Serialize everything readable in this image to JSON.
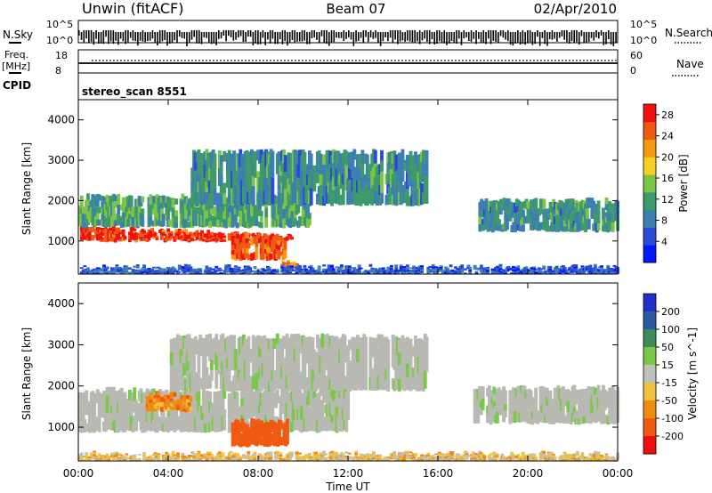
{
  "header": {
    "station": "Unwin (fitACF)",
    "beam": "Beam 07",
    "date": "02/Apr/2010"
  },
  "top_strips": {
    "nsky_label": "N.Sky",
    "nsky_ticks_left": [
      "10^5",
      "10^0"
    ],
    "nsearch_label": "N.Search",
    "nsearch_ticks_right": [
      "10^5",
      "10^0"
    ],
    "freq_label": "Freq.",
    "freq_unit": "[MHz]",
    "freq_ticks": [
      "18",
      "8"
    ],
    "nave_label": "Nave",
    "nave_ticks": [
      "60",
      "0"
    ],
    "cpid_label": "CPID",
    "cpid_value": "stereo_scan 8551"
  },
  "colors": {
    "power_scale": [
      "#0016ff",
      "#2a49d6",
      "#3d7fb0",
      "#3f9a6a",
      "#7bc445",
      "#f5d020",
      "#f59a12",
      "#ef5a12",
      "#f01010"
    ],
    "velocity_scale": [
      "#2030c8",
      "#2a5aa0",
      "#3d8a5a",
      "#7ac84a",
      "#c0c0ba",
      "#f0c040",
      "#f08a10",
      "#f05a10",
      "#ee1010"
    ],
    "ground_scatter": "#b9b9b3"
  },
  "chart_data": [
    {
      "type": "heatmap",
      "title": "",
      "xlabel": "",
      "ylabel": "Slant Range [km]",
      "x_ticks": [
        "00:00",
        "04:00",
        "08:00",
        "12:00",
        "16:00",
        "20:00",
        "00:00"
      ],
      "x_range_hours": [
        0,
        24
      ],
      "ylim": [
        180,
        4500
      ],
      "y_ticks": [
        1000,
        2000,
        3000,
        4000
      ],
      "colorbar": {
        "label": "Power [dB]",
        "ticks": [
          4,
          8,
          12,
          16,
          20,
          24,
          28
        ],
        "range": [
          0,
          30
        ]
      },
      "echo_regions": [
        {
          "name": "main band",
          "t_start": 0.0,
          "t_end": 9.5,
          "range_start_km": 1000,
          "range_end_km": 1350,
          "range_end_at_t_end_km": 1100,
          "power_db": 27
        },
        {
          "name": "upper band",
          "t_start": 0.0,
          "t_end": 10.5,
          "range_start_km": 1350,
          "range_end_km": 2100,
          "power_db": 12
        },
        {
          "name": "inner patch",
          "t_start": 6.8,
          "t_end": 9.2,
          "range_start_km": 550,
          "range_end_km": 1150,
          "power_db": 26
        },
        {
          "name": "near echo",
          "t_start": 9.0,
          "t_end": 9.8,
          "range_start_km": 300,
          "range_end_km": 450,
          "power_db": 22
        },
        {
          "name": "upper patches",
          "t_start": 5.0,
          "t_end": 15.5,
          "range_start_km": 1900,
          "range_end_km": 3200,
          "power_db": 10
        },
        {
          "name": "evening band",
          "t_start": 17.8,
          "t_end": 24.0,
          "range_start_km": 1250,
          "range_end_km": 2000,
          "power_db": 10
        },
        {
          "name": "near-range clutter",
          "t_start": 0.0,
          "t_end": 24.0,
          "range_start_km": 180,
          "range_end_km": 350,
          "power_db": 6
        }
      ]
    },
    {
      "type": "heatmap",
      "title": "",
      "xlabel": "Time UT",
      "ylabel": "Slant Range [km]",
      "x_ticks": [
        "00:00",
        "04:00",
        "08:00",
        "12:00",
        "16:00",
        "20:00",
        "00:00"
      ],
      "x_range_hours": [
        0,
        24
      ],
      "ylim": [
        180,
        4500
      ],
      "y_ticks": [
        1000,
        2000,
        3000,
        4000
      ],
      "colorbar": {
        "label": "Velocity [m s^-1]",
        "ticks": [
          200,
          100,
          50,
          15,
          -15,
          -50,
          -100,
          -200
        ],
        "range": [
          -250,
          250
        ]
      },
      "echo_regions": [
        {
          "name": "ground scatter band",
          "t_start": 0.0,
          "t_end": 12.0,
          "range_start_km": 900,
          "range_end_km": 1900,
          "velocity_ms": 0,
          "ground_scatter": true
        },
        {
          "name": "receding patch",
          "t_start": 6.8,
          "t_end": 9.3,
          "range_start_km": 550,
          "range_end_km": 1150,
          "velocity_ms": -150
        },
        {
          "name": "mid patch",
          "t_start": 3.0,
          "t_end": 5.0,
          "range_start_km": 1400,
          "range_end_km": 1800,
          "velocity_ms": -80
        },
        {
          "name": "upper scatter",
          "t_start": 4.0,
          "t_end": 15.5,
          "range_start_km": 1900,
          "range_end_km": 3200,
          "velocity_ms": 0,
          "ground_scatter": true
        },
        {
          "name": "evening ground scatter",
          "t_start": 17.5,
          "t_end": 24.0,
          "range_start_km": 1100,
          "range_end_km": 1950,
          "velocity_ms": 0,
          "ground_scatter": true
        },
        {
          "name": "near-range clutter",
          "t_start": 0.0,
          "t_end": 24.0,
          "range_start_km": 180,
          "range_end_km": 350,
          "velocity_ms": -30
        }
      ]
    }
  ]
}
